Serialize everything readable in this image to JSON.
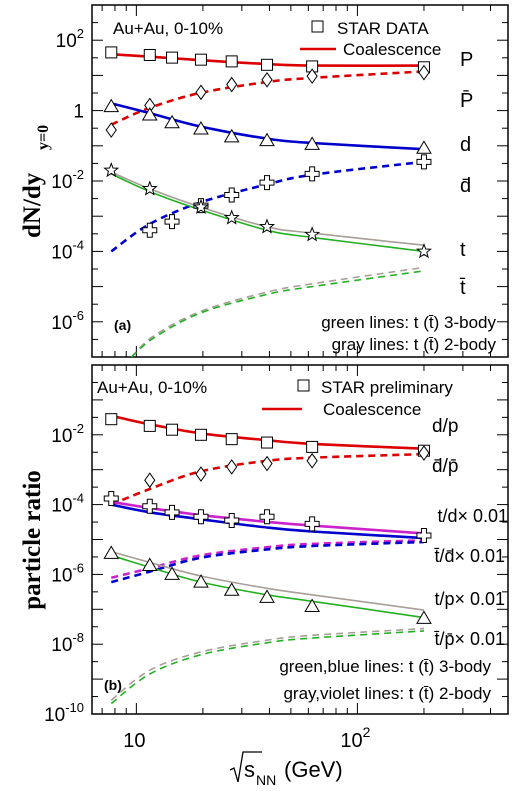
{
  "chart_data": [
    {
      "type": "scatter",
      "panel_label": "(a)",
      "ylabel": "dN/dy",
      "ylabel_sub": "y=0",
      "yscale": "log",
      "xscale": "log",
      "ylim": [
        1e-07,
        1000
      ],
      "xlim": [
        6.3,
        480
      ],
      "y_ticks": [
        {
          "v": 100,
          "label": "10",
          "sup": "2"
        },
        {
          "v": 1,
          "label": "1",
          "sup": ""
        },
        {
          "v": 0.01,
          "label": "10",
          "sup": "-2"
        },
        {
          "v": 0.0001,
          "label": "10",
          "sup": "-4"
        },
        {
          "v": 1e-06,
          "label": "10",
          "sup": "-6"
        }
      ],
      "legend": {
        "header": "Au+Au, 0-10%",
        "data_label": "STAR DATA",
        "line_label": "Coalescence"
      },
      "notes": [
        "green lines: t (t̄) 3-body",
        "gray lines: t (t̄) 2-body"
      ],
      "series": [
        {
          "name": "P",
          "marker": "square",
          "x": [
            7.7,
            11.5,
            14.5,
            19.6,
            27,
            39,
            62.4,
            200
          ],
          "y": [
            45,
            38,
            32,
            28,
            25,
            20,
            18,
            17
          ]
        },
        {
          "name": "P̄",
          "marker": "diamond",
          "x": [
            7.7,
            11.5,
            19.6,
            27,
            39,
            62.4,
            200
          ],
          "y": [
            0.28,
            1.4,
            3.3,
            5.5,
            7.5,
            9.5,
            12
          ]
        },
        {
          "name": "d",
          "marker": "triangle",
          "x": [
            7.7,
            11.5,
            14.5,
            19.6,
            27,
            39,
            62.4,
            200
          ],
          "y": [
            1.3,
            0.75,
            0.45,
            0.3,
            0.18,
            0.14,
            0.11,
            0.085
          ]
        },
        {
          "name": "d̄",
          "marker": "cross",
          "x": [
            11.5,
            14.5,
            19.6,
            27,
            39,
            62.4,
            200
          ],
          "y": [
            0.0004,
            0.0007,
            0.002,
            0.004,
            0.009,
            0.016,
            0.035
          ]
        },
        {
          "name": "t",
          "marker": "star",
          "x": [
            7.7,
            11.5,
            19.6,
            27,
            39,
            62.4,
            200
          ],
          "y": [
            0.02,
            0.006,
            0.0018,
            0.0009,
            0.0005,
            0.0003,
            0.0001
          ]
        }
      ],
      "curves": [
        {
          "label": "P",
          "style": "solid",
          "color": "#dd0000",
          "x": [
            7.7,
            11.5,
            19.6,
            39,
            62.4,
            200
          ],
          "y": [
            40,
            34,
            27,
            21,
            19,
            19
          ]
        },
        {
          "style": "dashed",
          "color": "#dd0000",
          "x": [
            7.7,
            11.5,
            19.6,
            39,
            62.4,
            200
          ],
          "y": [
            0.4,
            1.2,
            3.2,
            6.5,
            8.5,
            13
          ]
        },
        {
          "label": "d",
          "style": "solid",
          "color": "#0000cc",
          "x": [
            7.7,
            11.5,
            19.6,
            39,
            62.4,
            200
          ],
          "y": [
            1.6,
            0.85,
            0.35,
            0.16,
            0.12,
            0.08
          ]
        },
        {
          "style": "dashed",
          "color": "#0000cc",
          "x": [
            7.7,
            11.5,
            19.6,
            39,
            62.4,
            200
          ],
          "y": [
            0.0001,
            0.0006,
            0.0025,
            0.008,
            0.015,
            0.035
          ]
        },
        {
          "label": "t",
          "style": "solid",
          "color": "#a89e98",
          "x": [
            7.7,
            11.5,
            19.6,
            39,
            62.4,
            200
          ],
          "y": [
            0.018,
            0.006,
            0.0018,
            0.0005,
            0.00033,
            0.00015
          ]
        },
        {
          "style": "solid",
          "color": "#22b022",
          "x": [
            7.7,
            11.5,
            19.6,
            39,
            62.4,
            200
          ],
          "y": [
            0.016,
            0.005,
            0.0015,
            0.0004,
            0.00025,
            0.0001
          ]
        },
        {
          "style": "dashed",
          "color": "#a89e98",
          "x": [
            9.5,
            12,
            19.6,
            39,
            62.4,
            200
          ],
          "y": [
            1e-07,
            4e-07,
            2e-06,
            7e-06,
            1.2e-05,
            3.5e-05
          ]
        },
        {
          "label": "t̄",
          "style": "dashed",
          "color": "#22b022",
          "x": [
            9.5,
            12,
            19.6,
            39,
            62.4,
            200
          ],
          "y": [
            1e-07,
            3.5e-07,
            1.8e-06,
            6e-06,
            1e-05,
            2.8e-05
          ]
        }
      ]
    },
    {
      "type": "scatter",
      "panel_label": "(b)",
      "ylabel": "particle ratio",
      "xlabel": "√s_NN (GeV)",
      "yscale": "log",
      "xscale": "log",
      "ylim": [
        1e-10,
        1
      ],
      "xlim": [
        6.3,
        480
      ],
      "x_ticks": [
        {
          "v": 10,
          "label": "10",
          "sup": ""
        },
        {
          "v": 100,
          "label": "10",
          "sup": "2"
        }
      ],
      "y_ticks": [
        {
          "v": 0.01,
          "label": "10",
          "sup": "-2"
        },
        {
          "v": 0.0001,
          "label": "10",
          "sup": "-4"
        },
        {
          "v": 1e-06,
          "label": "10",
          "sup": "-6"
        },
        {
          "v": 1e-08,
          "label": "10",
          "sup": "-8"
        },
        {
          "v": 1e-10,
          "label": "10",
          "sup": "-10"
        }
      ],
      "legend": {
        "header": "Au+Au, 0-10%",
        "data_label": "STAR preliminary",
        "line_label": "Coalescence"
      },
      "notes": [
        "green,blue lines: t (t̄) 3-body",
        "gray,violet lines: t (t̄) 2-body"
      ],
      "series": [
        {
          "name": "d/p",
          "marker": "square",
          "x": [
            7.7,
            11.5,
            14.5,
            19.6,
            27,
            39,
            62.4,
            200
          ],
          "y": [
            0.028,
            0.018,
            0.014,
            0.01,
            0.0075,
            0.006,
            0.0045,
            0.0035
          ]
        },
        {
          "name": "d̄/p̄",
          "marker": "diamond",
          "x": [
            11.5,
            19.6,
            27,
            39,
            62.4,
            200
          ],
          "y": [
            0.0005,
            0.00075,
            0.0012,
            0.0015,
            0.0018,
            0.003
          ]
        },
        {
          "name": "t/d× 0.01",
          "marker": "cross",
          "x": [
            7.7,
            11.5,
            14.5,
            19.6,
            27,
            39,
            62.4,
            200
          ],
          "y": [
            0.00015,
            9e-05,
            6e-05,
            4.5e-05,
            3.5e-05,
            4.5e-05,
            2.8e-05,
            1.3e-05
          ]
        },
        {
          "name": "t/p× 0.01",
          "marker": "triangle",
          "x": [
            7.7,
            11.5,
            14.5,
            19.6,
            27,
            39,
            62.4,
            200
          ],
          "y": [
            4e-06,
            1.8e-06,
            1e-06,
            6e-07,
            3.5e-07,
            2.2e-07,
            1.2e-07,
            5.5e-08
          ]
        }
      ],
      "curves": [
        {
          "style": "solid",
          "color": "#dd0000",
          "x": [
            7.7,
            11.5,
            19.6,
            39,
            62.4,
            200
          ],
          "y": [
            0.035,
            0.02,
            0.011,
            0.007,
            0.0055,
            0.004
          ]
        },
        {
          "style": "dashed",
          "color": "#dd0000",
          "x": [
            7.7,
            11.5,
            19.6,
            39,
            62.4,
            200
          ],
          "y": [
            0.0001,
            0.00028,
            0.0009,
            0.0018,
            0.0022,
            0.0028
          ]
        },
        {
          "style": "solid",
          "color": "#cc22cc",
          "x": [
            7.7,
            11.5,
            19.6,
            39,
            62.4,
            200
          ],
          "y": [
            0.00012,
            8e-05,
            5e-05,
            3.2e-05,
            2.5e-05,
            1.5e-05
          ]
        },
        {
          "style": "solid",
          "color": "#0000cc",
          "x": [
            7.7,
            11.5,
            19.6,
            39,
            62.4,
            200
          ],
          "y": [
            0.0001,
            6e-05,
            3.8e-05,
            2.2e-05,
            1.7e-05,
            1.1e-05
          ]
        },
        {
          "style": "dashed",
          "color": "#cc22cc",
          "x": [
            7.7,
            11.5,
            19.6,
            39,
            62.4,
            200
          ],
          "y": [
            8e-07,
            1.5e-06,
            3.5e-06,
            6e-06,
            7.5e-06,
            9.5e-06
          ]
        },
        {
          "style": "dashed",
          "color": "#0000cc",
          "x": [
            7.7,
            11.5,
            19.6,
            39,
            62.4,
            200
          ],
          "y": [
            6e-07,
            1.2e-06,
            3e-06,
            5.2e-06,
            6.5e-06,
            8.5e-06
          ]
        },
        {
          "style": "solid",
          "color": "#a89e98",
          "x": [
            7.7,
            11.5,
            19.6,
            39,
            62.4,
            200
          ],
          "y": [
            4.5e-06,
            2.2e-06,
            9e-07,
            4e-07,
            2.6e-07,
            9.5e-08
          ]
        },
        {
          "style": "solid",
          "color": "#22b022",
          "x": [
            7.7,
            11.5,
            19.6,
            39,
            62.4,
            200
          ],
          "y": [
            3.5e-06,
            1.6e-06,
            6e-07,
            2.6e-07,
            1.7e-07,
            5.8e-08
          ]
        },
        {
          "style": "dashed",
          "color": "#a89e98",
          "x": [
            7.7,
            11.5,
            19.6,
            39,
            62.4,
            200
          ],
          "y": [
            2.5e-10,
            1.8e-09,
            6e-09,
            1.3e-08,
            1.8e-08,
            2.8e-08
          ]
        },
        {
          "style": "dashed",
          "color": "#22b022",
          "x": [
            7.7,
            11.5,
            19.6,
            39,
            62.4,
            200
          ],
          "y": [
            2e-10,
            1.4e-09,
            5e-09,
            1.1e-08,
            1.5e-08,
            2.4e-08
          ]
        }
      ],
      "right_labels": [
        "d/p",
        "d̄/p̄",
        "t/d× 0.01",
        "t̄/d̄× 0.01",
        "t/p× 0.01",
        "t̄/p̄× 0.01"
      ]
    }
  ]
}
